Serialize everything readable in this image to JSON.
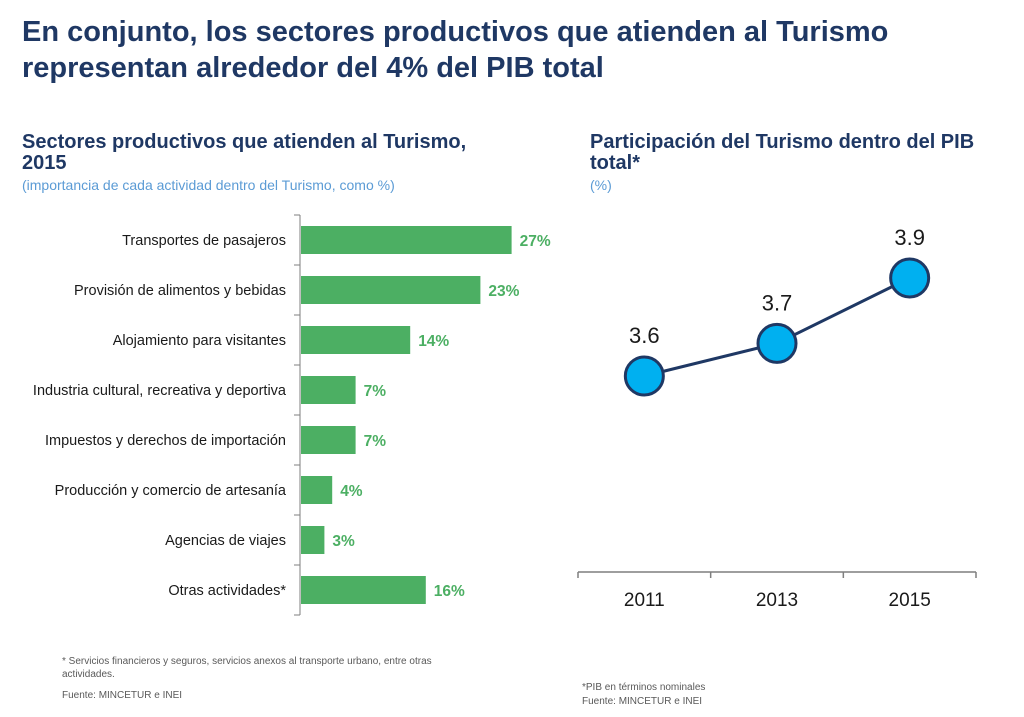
{
  "title": "En conjunto, los sectores productivos que atienden al Turismo representan alrededor del 4% del PIB total",
  "colors": {
    "title": "#1f3864",
    "subtitle": "#5b9bd5",
    "bar": "#4caf63",
    "bar_label": "#4caf63",
    "line": "#1f3864",
    "marker_fill": "#00b0f0",
    "marker_stroke": "#1f3864",
    "axis": "#7f7f7f"
  },
  "chart_data": [
    {
      "type": "bar",
      "orientation": "horizontal",
      "title": "Sectores productivos que atienden al Turismo, 2015",
      "subtitle": "(importancia de cada actividad dentro del Turismo, como %)",
      "categories": [
        "Transportes de pasajeros",
        "Provisión de alimentos y bebidas",
        "Alojamiento para visitantes",
        "Industria cultural, recreativa y deportiva",
        "Impuestos y derechos de importación",
        "Producción y comercio de artesanía",
        "Agencias de viajes",
        "Otras actividades*"
      ],
      "values": [
        27,
        23,
        14,
        7,
        7,
        4,
        3,
        16
      ],
      "value_labels": [
        "27%",
        "23%",
        "14%",
        "7%",
        "7%",
        "4%",
        "3%",
        "16%"
      ],
      "xlim": [
        0,
        30
      ],
      "note": "* Servicios financieros y seguros, servicios anexos al transporte urbano, entre otras actividades.",
      "source": "Fuente: MINCETUR e INEI"
    },
    {
      "type": "line",
      "title": "Participación del Turismo dentro del PIB total*",
      "subtitle": "(%)",
      "x": [
        "2011",
        "2013",
        "2015"
      ],
      "values": [
        3.6,
        3.7,
        3.9
      ],
      "value_labels": [
        "3.6",
        "3.7",
        "3.9"
      ],
      "ylim": [
        3.0,
        4.2
      ],
      "note": "*PIB en términos nominales",
      "source": "Fuente: MINCETUR e INEI"
    }
  ]
}
